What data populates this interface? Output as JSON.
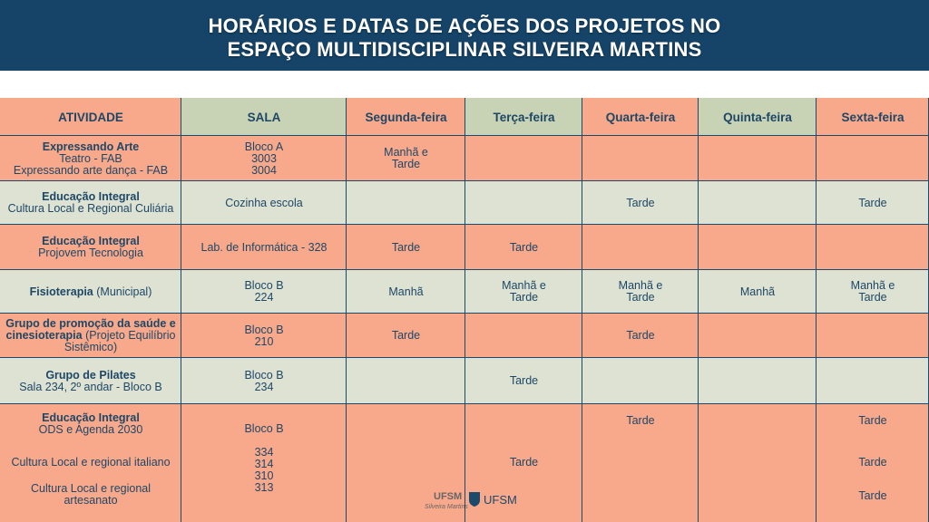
{
  "header": {
    "title": [
      "HORÁRIOS E DATAS DE AÇÕES DOS PROJETOS NO",
      "ESPAÇO MULTIDISCIPLINAR SILVEIRA MARTINS"
    ]
  },
  "table": {
    "columns": [
      "ATIVIDADE",
      "SALA",
      "Segunda-feira",
      "Terça-feira",
      "Quarta-feira",
      "Quinta-feira",
      "Sexta-feira"
    ],
    "rows": [
      {
        "activity": {
          "title": "Expressando Arte",
          "text": [
            "Teatro - FAB",
            "Expressando arte dança - FAB"
          ]
        },
        "sala": [
          "Bloco A",
          "3003",
          "3004"
        ],
        "schedule": [
          "Manhã e Tarde",
          null,
          null,
          null,
          null
        ]
      },
      {
        "activity": {
          "title": "Educação Integral",
          "text": [
            "Cultura Local e Regional Culiária"
          ]
        },
        "sala": [
          "Cozinha escola"
        ],
        "schedule": [
          null,
          null,
          "Tarde",
          null,
          "Tarde"
        ]
      },
      {
        "activity": {
          "title": "Educação Integral",
          "text": [
            "Projovem Tecnologia"
          ]
        },
        "sala": [
          "Lab. de Informática - 328"
        ],
        "schedule": [
          "Tarde",
          "Tarde",
          null,
          null,
          null
        ]
      },
      {
        "activity": {
          "title": "Fisioterapia",
          "text": "(Municipal)"
        },
        "sala": [
          "Bloco B",
          "224"
        ],
        "schedule": [
          "Manhã",
          "Manhã e Tarde",
          "Manhã e Tarde",
          "Manhã",
          "Manhã e Tarde"
        ]
      },
      {
        "activity": {
          "title": "Grupo de promoção da saúde e cinesioterapia",
          "text": "(Projeto Equilíbrio Sistêmico)"
        },
        "sala": [
          "Bloco B",
          "210"
        ],
        "schedule": [
          "Tarde",
          null,
          "Tarde",
          null,
          null
        ]
      },
      {
        "activity": {
          "title": "Grupo de Pilates",
          "text": [
            "Sala 234, 2º andar - Bloco B"
          ]
        },
        "sala": [
          "Bloco B",
          "234"
        ],
        "schedule": [
          null,
          "Tarde",
          null,
          null,
          null
        ]
      },
      {
        "activity": {
          "title": "Educação Integral",
          "text": [
            "ODS e Agenda 2030",
            "Cultura Local e regional italiano",
            "Cultura Local e regional artesanato"
          ]
        },
        "sala": [
          "Bloco B",
          "334",
          "314",
          "310",
          "313"
        ],
        "schedule": [
          null,
          [
            "Tarde"
          ],
          [
            "Tarde"
          ],
          null,
          [
            "Tarde",
            "Tarde",
            "Tarde"
          ]
        ]
      }
    ]
  },
  "logos": [
    "UFSM",
    "Silveira Martins",
    "UFSM"
  ]
}
